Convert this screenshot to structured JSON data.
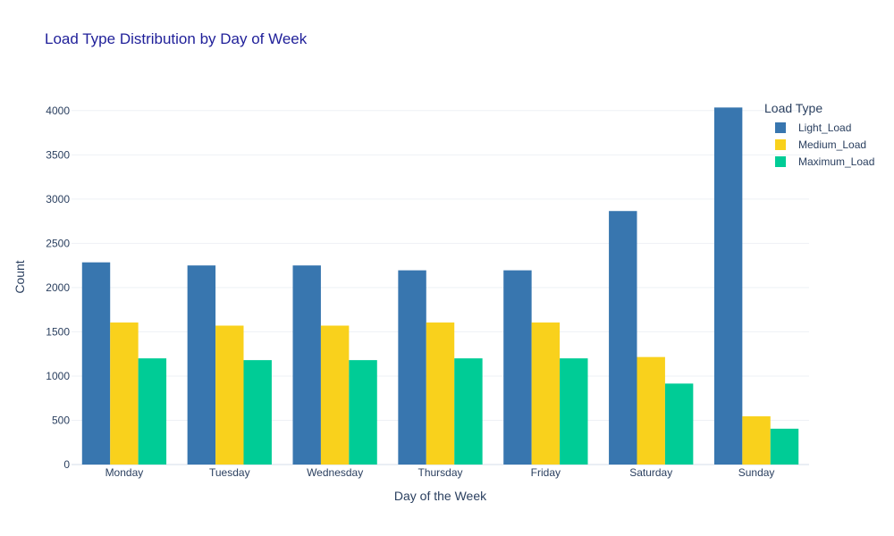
{
  "chart_data": {
    "type": "bar",
    "title": "Load Type Distribution by Day of Week",
    "xlabel": "Day of the Week",
    "ylabel": "Count",
    "ylim": [
      0,
      4200
    ],
    "yticks": [
      0,
      500,
      1000,
      1500,
      2000,
      2500,
      3000,
      3500,
      4000
    ],
    "grid": true,
    "legend_title": "Load Type",
    "legend_position": "top-right",
    "categories": [
      "Monday",
      "Tuesday",
      "Wednesday",
      "Thursday",
      "Friday",
      "Saturday",
      "Sunday"
    ],
    "series": [
      {
        "name": "Light_Load",
        "color": "#3876af",
        "values": [
          2285,
          2250,
          2250,
          2195,
          2195,
          2865,
          4035
        ]
      },
      {
        "name": "Medium_Load",
        "color": "#f9d11c",
        "values": [
          1605,
          1570,
          1570,
          1605,
          1605,
          1215,
          545
        ]
      },
      {
        "name": "Maximum_Load",
        "color": "#00cc96",
        "values": [
          1200,
          1180,
          1180,
          1200,
          1200,
          915,
          405
        ]
      }
    ]
  }
}
